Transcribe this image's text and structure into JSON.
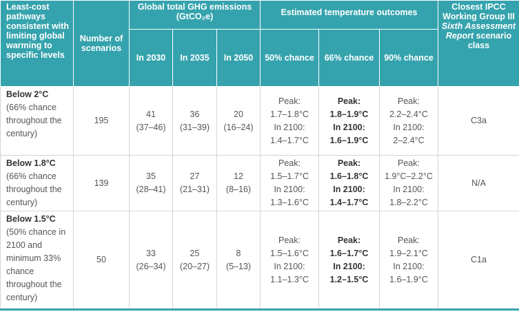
{
  "table": {
    "header": {
      "pathways": "Least-cost pathways consistent with limiting global warming to specific levels",
      "scenarios": "Number of scenarios",
      "emissions_title": "Global total GHG emissions",
      "emissions_unit": "(GtCO₂e)",
      "years": [
        "In 2030",
        "In 2035",
        "In 2050"
      ],
      "temperature": "Estimated temperature outcomes",
      "chances": [
        "50% chance",
        "66% chance",
        "90% chance"
      ],
      "ipcc_line1": "Closest IPCC Working Group III",
      "ipcc_italic": "Sixth Assessment Report",
      "ipcc_line3": "scenario class"
    },
    "rows": [
      {
        "level": "Below 2°C",
        "description": "(66% chance throughout the century)",
        "scenarios": 195,
        "emissions": [
          {
            "value": 41,
            "range": "(37–46)"
          },
          {
            "value": 36,
            "range": "(31–39)"
          },
          {
            "value": 20,
            "range": "(16–24)"
          }
        ],
        "temps": [
          {
            "peak_label": "Peak:",
            "peak": "1.7–1.8°C",
            "end_label": "In 2100:",
            "end": "1.4–1.7°C"
          },
          {
            "peak_label": "Peak:",
            "peak": "1.8–1.9°C",
            "end_label": "In 2100:",
            "end": "1.6–1.9°C"
          },
          {
            "peak_label": "Peak:",
            "peak": "2.2–2.4°C",
            "end_label": "In 2100:",
            "end": "2–2.4°C"
          }
        ],
        "ipcc": "C3a"
      },
      {
        "level": "Below 1.8°C",
        "description": "(66% chance throughout the century)",
        "scenarios": 139,
        "emissions": [
          {
            "value": 35,
            "range": "(28–41)"
          },
          {
            "value": 27,
            "range": "(21–31)"
          },
          {
            "value": 12,
            "range": "(8–16)"
          }
        ],
        "temps": [
          {
            "peak_label": "Peak:",
            "peak": "1.5–1.7°C",
            "end_label": "In 2100:",
            "end": "1.3–1.6°C"
          },
          {
            "peak_label": "Peak:",
            "peak": "1.6–1.8°C",
            "end_label": "In 2100:",
            "end": "1.4–1.7°C"
          },
          {
            "peak_label": "Peak:",
            "peak": "1.9°C–2.2°C",
            "end_label": "In 2100:",
            "end": "1.8–2.2°C"
          }
        ],
        "ipcc": "N/A"
      },
      {
        "level": "Below 1.5°C",
        "description": "(50% chance in 2100 and minimum 33% chance throughout the century)",
        "scenarios": 50,
        "emissions": [
          {
            "value": 33,
            "range": "(26–34)"
          },
          {
            "value": 25,
            "range": "(20–27)"
          },
          {
            "value": 8,
            "range": "(5–13)"
          }
        ],
        "temps": [
          {
            "peak_label": "Peak:",
            "peak": "1.5–1.6°C",
            "end_label": "In 2100:",
            "end": "1.1–1.3°C"
          },
          {
            "peak_label": "Peak:",
            "peak": "1.6–1.7°C",
            "end_label": "In 2100:",
            "end": "1.2–1.5°C"
          },
          {
            "peak_label": "Peak:",
            "peak": "1.9–2.1°C",
            "end_label": "In 2100:",
            "end": "1.6–1.9°C"
          }
        ],
        "ipcc": "C1a"
      }
    ]
  }
}
